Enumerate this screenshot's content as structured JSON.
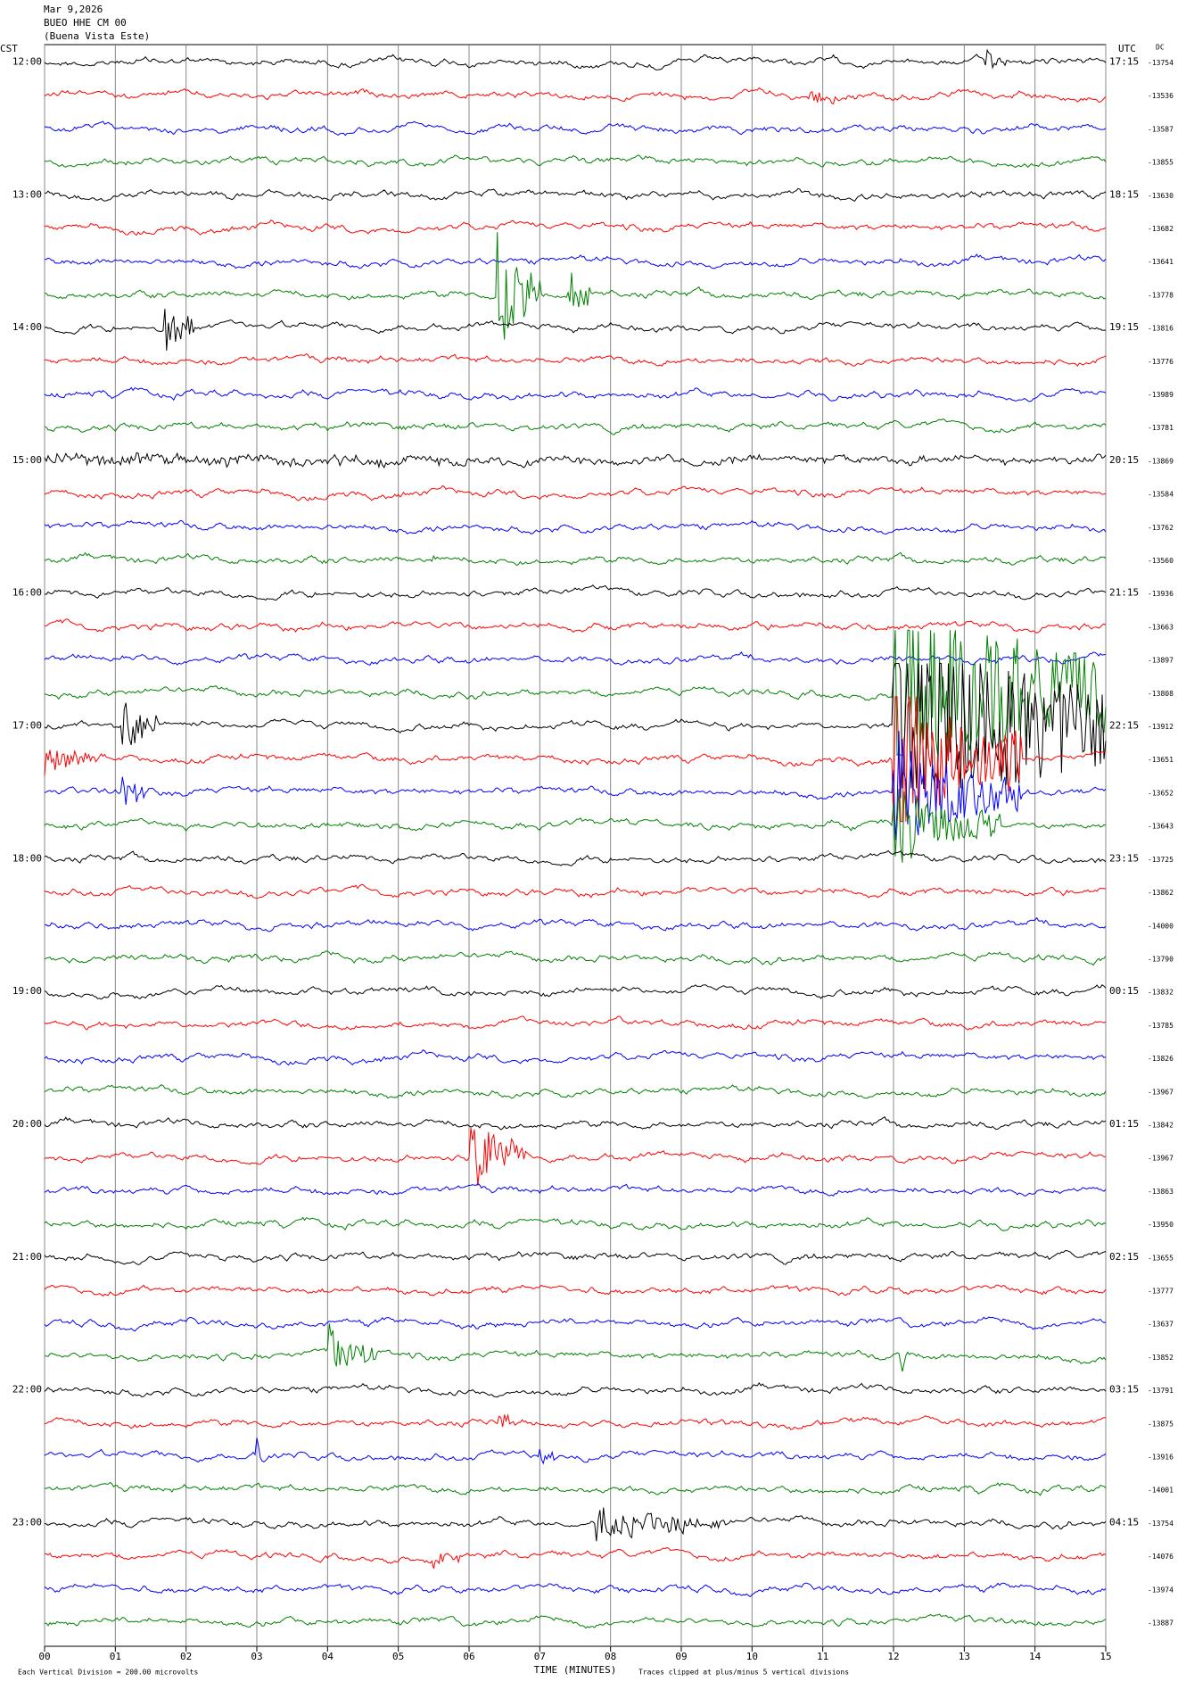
{
  "chart_data": {
    "type": "helicorder",
    "title": "Mar 9,2026",
    "station": "BUEO HHE CM 00",
    "location": "(Buena Vista Este)",
    "left_axis_label": "CST",
    "right_axis_label": "UTC",
    "dc_label": "DC",
    "x_label": "TIME (MINUTES)",
    "scale_note": "Each Vertical Division = 200.00 microvolts",
    "clip_note": "Traces clipped at plus/minus 5 vertical divisions",
    "xlim": [
      0,
      15
    ],
    "xticks": [
      {
        "value": 0,
        "label": "00"
      },
      {
        "value": 1,
        "label": "01"
      },
      {
        "value": 2,
        "label": "02"
      },
      {
        "value": 3,
        "label": "03"
      },
      {
        "value": 4,
        "label": "04"
      },
      {
        "value": 5,
        "label": "05"
      },
      {
        "value": 6,
        "label": "06"
      },
      {
        "value": 7,
        "label": "07"
      },
      {
        "value": 8,
        "label": "08"
      },
      {
        "value": 9,
        "label": "09"
      },
      10,
      11,
      12,
      13,
      14,
      15
    ],
    "grid": true,
    "trace_colors": [
      "#000000",
      "#ff0000",
      "#0000ff",
      "#008000"
    ],
    "hour_labels": [
      "12:00",
      "13:00",
      "14:00",
      "15:00",
      "16:00",
      "17:00",
      "18:00",
      "19:00",
      "20:00",
      "21:00",
      "22:00",
      "23:00"
    ],
    "utc_labels": [
      "17:15",
      "18:15",
      "19:15",
      "20:15",
      "21:15",
      "22:15",
      "23:15",
      "00:15",
      "01:15",
      "02:15",
      "03:15",
      "04:15"
    ],
    "dc_values": [
      -13754,
      -13536,
      -13587,
      -13855,
      -13630,
      -13682,
      -13641,
      -13778,
      -13816,
      -13776,
      -13989,
      -13781,
      -13869,
      -13584,
      -13762,
      -13560,
      -13936,
      -13663,
      -13897,
      -13808,
      -13912,
      -13651,
      -13652,
      -13643,
      -13725,
      -13862,
      -14000,
      -13790,
      -13832,
      -13785,
      -13826,
      -13967,
      -13842,
      -13967,
      -13863,
      -13950,
      -13655,
      -13777,
      -13637,
      -13852,
      -13791,
      -13875,
      -13916,
      -14001,
      -13754,
      -14076,
      -13974,
      -13887
    ]
  }
}
